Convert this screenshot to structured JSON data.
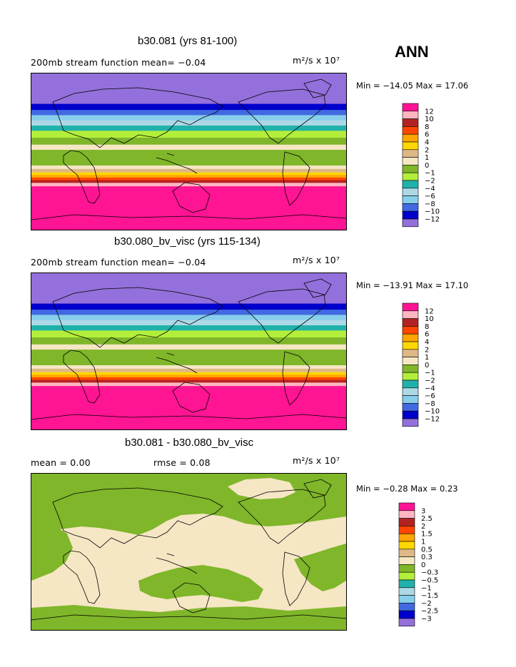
{
  "season": "ANN",
  "palette": {
    "diverging": [
      "#9370db",
      "#0000cd",
      "#4169e1",
      "#87ceeb",
      "#add8e6",
      "#20b2aa",
      "#b3ee3a",
      "#7fb62a",
      "#f5e6c4",
      "#deb887",
      "#ffd700",
      "#ffa500",
      "#ff4500",
      "#b22222",
      "#ffb6c1",
      "#ff1493"
    ]
  },
  "panels": [
    {
      "title": "b30.081 (yrs 81-100)",
      "left_label": "200mb stream function  mean=  −0.04",
      "units": "m²/s x 10⁷",
      "min_max": "Min = −14.05 Max =  17.06",
      "levels": [
        "12",
        "10",
        "8",
        "6",
        "4",
        "2",
        "1",
        "0",
        "−1",
        "−2",
        "−4",
        "−6",
        "−8",
        "−10",
        "−12"
      ]
    },
    {
      "title": "b30.080_bv_visc (yrs 115-134)",
      "left_label": "200mb stream function  mean=  −0.04",
      "units": "m²/s x 10⁷",
      "min_max": "Min = −13.91 Max =  17.10",
      "levels": [
        "12",
        "10",
        "8",
        "6",
        "4",
        "2",
        "1",
        "0",
        "−1",
        "−2",
        "−4",
        "−6",
        "−8",
        "−10",
        "−12"
      ]
    },
    {
      "title": "b30.081 - b30.080_bv_visc",
      "left_label": "mean =    0.00",
      "middle_label": "rmse =    0.08",
      "units": "m²/s x 10⁷",
      "min_max": "Min =  −0.28 Max =   0.23",
      "levels": [
        "3",
        "2.5",
        "2",
        "1.5",
        "1",
        "0.5",
        "0.3",
        "0",
        "−0.3",
        "−0.5",
        "−1",
        "−1.5",
        "−2",
        "−2.5",
        "−3"
      ]
    }
  ],
  "chart_data": [
    {
      "type": "heatmap",
      "title": "b30.081 (yrs 81-100)",
      "field": "200mb stream function",
      "mean": -0.04,
      "units": "m2/s x 10^7",
      "min": -14.05,
      "max": 17.06,
      "contour_levels": [
        -12,
        -10,
        -8,
        -6,
        -4,
        -2,
        -1,
        0,
        1,
        2,
        4,
        6,
        8,
        10,
        12
      ],
      "bands_north_to_south": [
        {
          "lat": 90,
          "value": -13
        },
        {
          "lat": 65,
          "value": -13
        },
        {
          "lat": 55,
          "value": -11
        },
        {
          "lat": 48,
          "value": -9
        },
        {
          "lat": 42,
          "value": -7
        },
        {
          "lat": 36,
          "value": -5
        },
        {
          "lat": 30,
          "value": -3
        },
        {
          "lat": 24,
          "value": -1.5
        },
        {
          "lat": 16,
          "value": -0.5
        },
        {
          "lat": 8,
          "value": 0.5
        },
        {
          "lat": 2,
          "value": -0.5
        },
        {
          "lat": -10,
          "value": -0.5
        },
        {
          "lat": -16,
          "value": 0.5
        },
        {
          "lat": -20,
          "value": 1.5
        },
        {
          "lat": -24,
          "value": 3
        },
        {
          "lat": -27,
          "value": 5
        },
        {
          "lat": -30,
          "value": 7
        },
        {
          "lat": -33,
          "value": 9
        },
        {
          "lat": -36,
          "value": 11
        },
        {
          "lat": -40,
          "value": 13
        },
        {
          "lat": -90,
          "value": 13
        }
      ]
    },
    {
      "type": "heatmap",
      "title": "b30.080_bv_visc (yrs 115-134)",
      "field": "200mb stream function",
      "mean": -0.04,
      "units": "m2/s x 10^7",
      "min": -13.91,
      "max": 17.1,
      "contour_levels": [
        -12,
        -10,
        -8,
        -6,
        -4,
        -2,
        -1,
        0,
        1,
        2,
        4,
        6,
        8,
        10,
        12
      ],
      "bands_north_to_south": [
        {
          "lat": 90,
          "value": -13
        },
        {
          "lat": 65,
          "value": -13
        },
        {
          "lat": 55,
          "value": -11
        },
        {
          "lat": 48,
          "value": -9
        },
        {
          "lat": 42,
          "value": -7
        },
        {
          "lat": 36,
          "value": -5
        },
        {
          "lat": 30,
          "value": -3
        },
        {
          "lat": 24,
          "value": -1.5
        },
        {
          "lat": 16,
          "value": -0.5
        },
        {
          "lat": 8,
          "value": 0.5
        },
        {
          "lat": 2,
          "value": -0.5
        },
        {
          "lat": -10,
          "value": -0.5
        },
        {
          "lat": -16,
          "value": 0.5
        },
        {
          "lat": -20,
          "value": 1.5
        },
        {
          "lat": -24,
          "value": 3
        },
        {
          "lat": -27,
          "value": 5
        },
        {
          "lat": -30,
          "value": 7
        },
        {
          "lat": -33,
          "value": 9
        },
        {
          "lat": -36,
          "value": 11
        },
        {
          "lat": -40,
          "value": 13
        },
        {
          "lat": -90,
          "value": 13
        }
      ]
    },
    {
      "type": "heatmap",
      "title": "b30.081 - b30.080_bv_visc",
      "mean": 0.0,
      "rmse": 0.08,
      "units": "m2/s x 10^7",
      "min": -0.28,
      "max": 0.23,
      "contour_levels": [
        -3,
        -2.5,
        -2,
        -1.5,
        -1,
        -0.5,
        -0.3,
        0,
        0.3,
        0.5,
        1,
        1.5,
        2,
        2.5,
        3
      ],
      "dominant_classes": [
        {
          "range": "-0.3 to 0",
          "region": "northern hemisphere and southern ocean bands"
        },
        {
          "range": "0 to 0.3",
          "region": "tropics and subtropics"
        }
      ]
    }
  ]
}
